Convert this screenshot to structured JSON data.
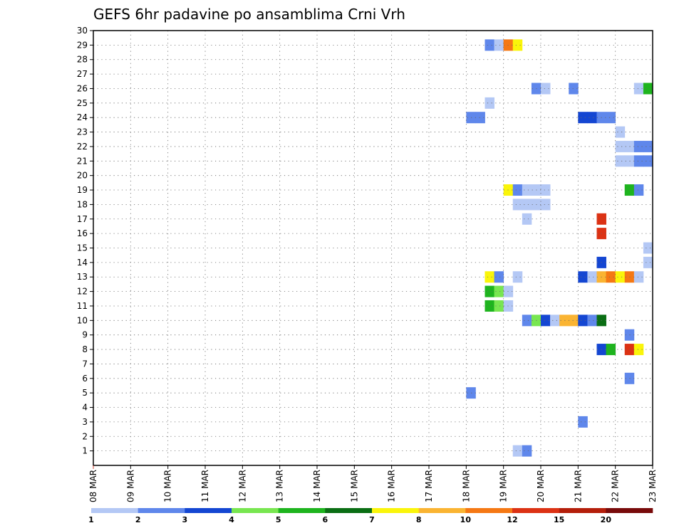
{
  "chart_data": {
    "type": "heatmap",
    "title": "GEFS 6hr padavine po ansamblima Crni Vrh",
    "xlabel": "",
    "ylabel": "",
    "x_ticks": [
      "08 MAR",
      "09 MAR",
      "10 MAR",
      "11 MAR",
      "12 MAR",
      "13 MAR",
      "14 MAR",
      "15 MAR",
      "16 MAR",
      "17 MAR",
      "18 MAR",
      "19 MAR",
      "20 MAR",
      "21 MAR",
      "22 MAR",
      "23 MAR"
    ],
    "x_range_days": [
      0,
      15
    ],
    "step_days": 0.25,
    "y_ticks": [
      1,
      2,
      3,
      4,
      5,
      6,
      7,
      8,
      9,
      10,
      11,
      12,
      13,
      14,
      15,
      16,
      17,
      18,
      19,
      20,
      21,
      22,
      23,
      24,
      25,
      26,
      27,
      28,
      29,
      30
    ],
    "ylim": [
      0,
      30
    ],
    "grid": true,
    "legend": {
      "position": "bottom",
      "labels": [
        "1",
        "2",
        "3",
        "4",
        "5",
        "6",
        "7",
        "8",
        "10",
        "12",
        "15",
        "20"
      ],
      "colors": [
        "#b4c8f5",
        "#5f87eb",
        "#1446d2",
        "#78e650",
        "#1eb41e",
        "#0a6e14",
        "#faf50a",
        "#fab432",
        "#f57814",
        "#dc3214",
        "#b41e0a",
        "#780a0a"
      ]
    },
    "cells": [
      {
        "m": 29,
        "t": 10.5,
        "c": 1
      },
      {
        "m": 29,
        "t": 10.75,
        "c": 0
      },
      {
        "m": 29,
        "t": 11.0,
        "c": 8
      },
      {
        "m": 29,
        "t": 11.25,
        "c": 6
      },
      {
        "m": 26,
        "t": 11.75,
        "c": 1
      },
      {
        "m": 26,
        "t": 12.0,
        "c": 0
      },
      {
        "m": 26,
        "t": 12.75,
        "c": 1
      },
      {
        "m": 26,
        "t": 14.5,
        "c": 0
      },
      {
        "m": 26,
        "t": 14.75,
        "c": 4
      },
      {
        "m": 25,
        "t": 10.5,
        "c": 0
      },
      {
        "m": 24,
        "t": 10.0,
        "c": 1
      },
      {
        "m": 24,
        "t": 10.25,
        "c": 1
      },
      {
        "m": 24,
        "t": 13.0,
        "c": 2
      },
      {
        "m": 24,
        "t": 13.25,
        "c": 2
      },
      {
        "m": 24,
        "t": 13.5,
        "c": 1
      },
      {
        "m": 24,
        "t": 13.75,
        "c": 1
      },
      {
        "m": 23,
        "t": 14.0,
        "c": 0
      },
      {
        "m": 22,
        "t": 14.0,
        "c": 0
      },
      {
        "m": 22,
        "t": 14.25,
        "c": 0
      },
      {
        "m": 22,
        "t": 14.5,
        "c": 1
      },
      {
        "m": 22,
        "t": 14.75,
        "c": 1
      },
      {
        "m": 21,
        "t": 14.0,
        "c": 0
      },
      {
        "m": 21,
        "t": 14.25,
        "c": 0
      },
      {
        "m": 21,
        "t": 14.5,
        "c": 1
      },
      {
        "m": 21,
        "t": 14.75,
        "c": 1
      },
      {
        "m": 19,
        "t": 11.0,
        "c": 6
      },
      {
        "m": 19,
        "t": 11.25,
        "c": 1
      },
      {
        "m": 19,
        "t": 11.5,
        "c": 0
      },
      {
        "m": 19,
        "t": 11.75,
        "c": 0
      },
      {
        "m": 19,
        "t": 12.0,
        "c": 0
      },
      {
        "m": 19,
        "t": 14.25,
        "c": 4
      },
      {
        "m": 19,
        "t": 14.5,
        "c": 1
      },
      {
        "m": 18,
        "t": 11.25,
        "c": 0
      },
      {
        "m": 18,
        "t": 11.5,
        "c": 0
      },
      {
        "m": 18,
        "t": 11.75,
        "c": 0
      },
      {
        "m": 18,
        "t": 12.0,
        "c": 0
      },
      {
        "m": 17,
        "t": 11.5,
        "c": 0
      },
      {
        "m": 17,
        "t": 13.5,
        "c": 9
      },
      {
        "m": 16,
        "t": 13.5,
        "c": 9
      },
      {
        "m": 15,
        "t": 14.75,
        "c": 0
      },
      {
        "m": 14,
        "t": 14.75,
        "c": 0
      },
      {
        "m": 14,
        "t": 13.5,
        "c": 2
      },
      {
        "m": 13,
        "t": 10.5,
        "c": 6
      },
      {
        "m": 13,
        "t": 10.75,
        "c": 1
      },
      {
        "m": 13,
        "t": 11.25,
        "c": 0
      },
      {
        "m": 13,
        "t": 13.0,
        "c": 2
      },
      {
        "m": 13,
        "t": 13.25,
        "c": 0
      },
      {
        "m": 13,
        "t": 13.5,
        "c": 7
      },
      {
        "m": 13,
        "t": 13.75,
        "c": 8
      },
      {
        "m": 13,
        "t": 14.0,
        "c": 6
      },
      {
        "m": 13,
        "t": 14.25,
        "c": 8
      },
      {
        "m": 13,
        "t": 14.5,
        "c": 0
      },
      {
        "m": 12,
        "t": 10.5,
        "c": 4
      },
      {
        "m": 12,
        "t": 10.75,
        "c": 3
      },
      {
        "m": 12,
        "t": 11.0,
        "c": 0
      },
      {
        "m": 11,
        "t": 10.5,
        "c": 4
      },
      {
        "m": 11,
        "t": 10.75,
        "c": 3
      },
      {
        "m": 11,
        "t": 11.0,
        "c": 0
      },
      {
        "m": 10,
        "t": 11.5,
        "c": 1
      },
      {
        "m": 10,
        "t": 11.75,
        "c": 3
      },
      {
        "m": 10,
        "t": 12.0,
        "c": 2
      },
      {
        "m": 10,
        "t": 12.25,
        "c": 0
      },
      {
        "m": 10,
        "t": 12.5,
        "c": 7
      },
      {
        "m": 10,
        "t": 12.75,
        "c": 7
      },
      {
        "m": 10,
        "t": 13.0,
        "c": 2
      },
      {
        "m": 10,
        "t": 13.25,
        "c": 1
      },
      {
        "m": 10,
        "t": 13.5,
        "c": 5
      },
      {
        "m": 9,
        "t": 14.25,
        "c": 1
      },
      {
        "m": 8,
        "t": 13.5,
        "c": 2
      },
      {
        "m": 8,
        "t": 13.75,
        "c": 4
      },
      {
        "m": 8,
        "t": 14.25,
        "c": 9
      },
      {
        "m": 8,
        "t": 14.5,
        "c": 6
      },
      {
        "m": 6,
        "t": 14.25,
        "c": 1
      },
      {
        "m": 5,
        "t": 10.0,
        "c": 1
      },
      {
        "m": 3,
        "t": 13.0,
        "c": 1
      },
      {
        "m": 1,
        "t": 11.25,
        "c": 0
      },
      {
        "m": 1,
        "t": 11.5,
        "c": 1
      }
    ]
  }
}
